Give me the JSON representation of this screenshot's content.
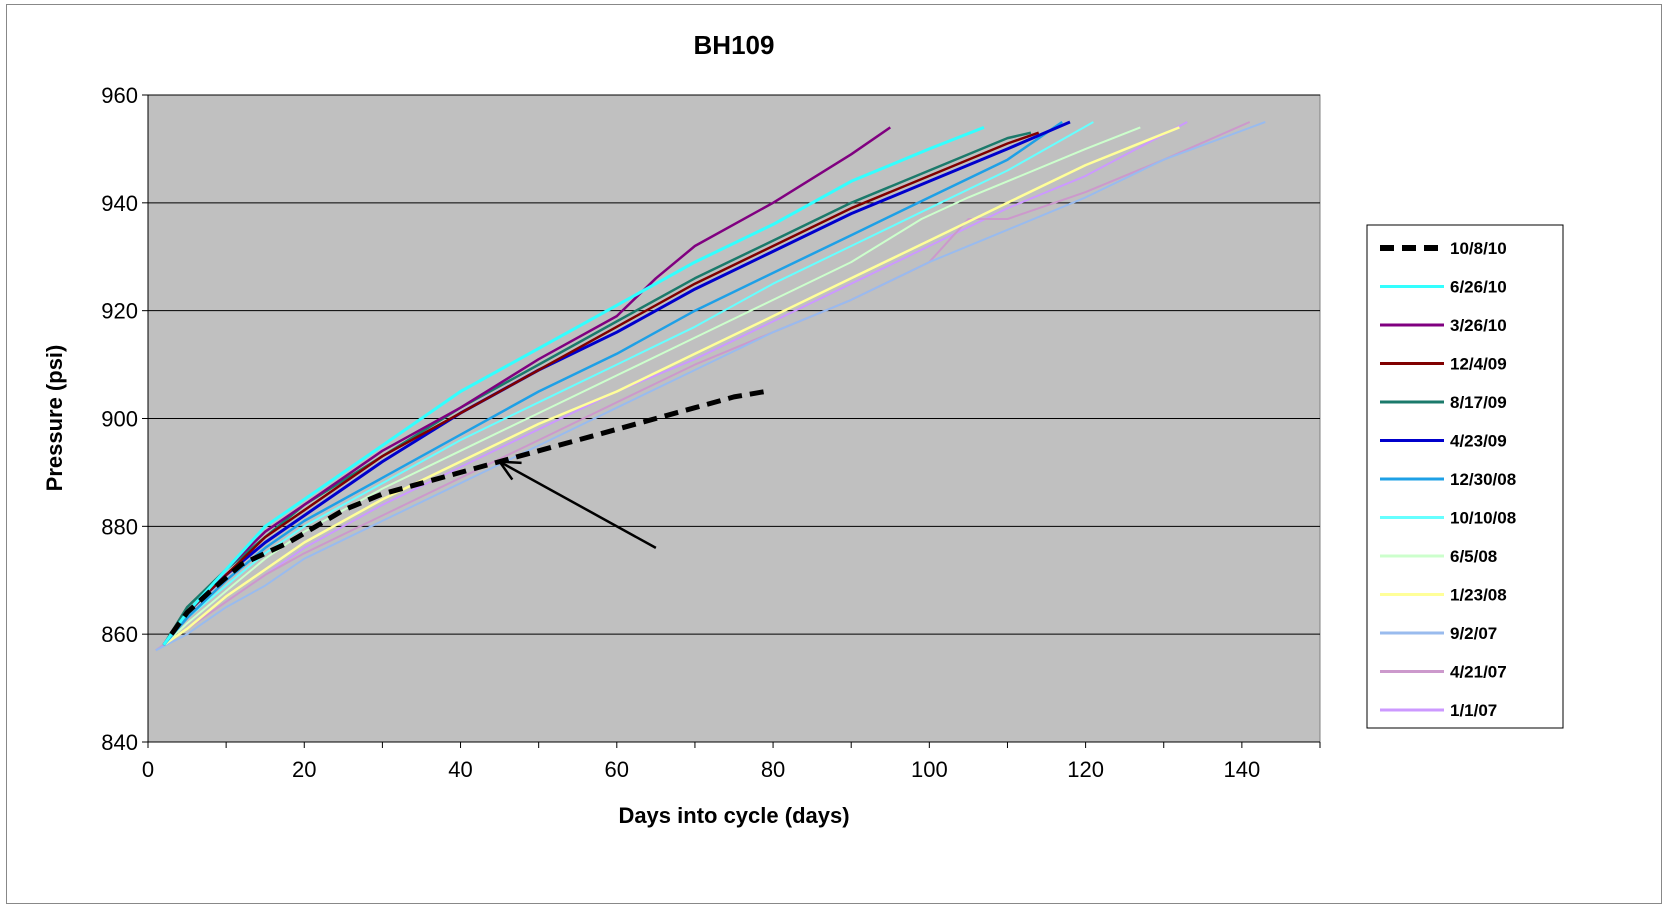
{
  "chart_data": {
    "type": "line",
    "title": "BH109",
    "xlabel": "Days into cycle (days)",
    "ylabel": "Pressure (psi)",
    "xlim": [
      0,
      150
    ],
    "ylim": [
      840,
      960
    ],
    "x_ticks": [
      0,
      20,
      40,
      60,
      80,
      100,
      120,
      140
    ],
    "y_ticks": [
      840,
      860,
      880,
      900,
      920,
      940,
      960
    ],
    "grid": "horizontal",
    "plot_background": "#c0c0c0",
    "legend_position": "right",
    "annotation": {
      "type": "arrow",
      "from": [
        65,
        876
      ],
      "to": [
        45,
        892
      ]
    },
    "series": [
      {
        "name": "10/8/10",
        "color": "#000000",
        "dashed": true,
        "width": 5,
        "points": [
          [
            3,
            860
          ],
          [
            5,
            864
          ],
          [
            8,
            868
          ],
          [
            12,
            873
          ],
          [
            18,
            877
          ],
          [
            25,
            883
          ],
          [
            30,
            886
          ],
          [
            35,
            888
          ],
          [
            40,
            890
          ],
          [
            45,
            892
          ],
          [
            50,
            894
          ],
          [
            55,
            896
          ],
          [
            60,
            898
          ],
          [
            65,
            900
          ],
          [
            70,
            902
          ],
          [
            75,
            904
          ],
          [
            79,
            905
          ]
        ]
      },
      {
        "name": "6/26/10",
        "color": "#33ffff",
        "width": 3,
        "points": [
          [
            2,
            858
          ],
          [
            5,
            864
          ],
          [
            10,
            872
          ],
          [
            15,
            880
          ],
          [
            20,
            885
          ],
          [
            30,
            895
          ],
          [
            40,
            905
          ],
          [
            50,
            913
          ],
          [
            60,
            921
          ],
          [
            70,
            929
          ],
          [
            80,
            936
          ],
          [
            90,
            944
          ],
          [
            100,
            950
          ],
          [
            107,
            954
          ]
        ]
      },
      {
        "name": "3/26/10",
        "color": "#800080",
        "width": 2.5,
        "points": [
          [
            2,
            858
          ],
          [
            5,
            864
          ],
          [
            10,
            872
          ],
          [
            15,
            879
          ],
          [
            20,
            884
          ],
          [
            30,
            894
          ],
          [
            40,
            902
          ],
          [
            50,
            911
          ],
          [
            60,
            919
          ],
          [
            65,
            926
          ],
          [
            70,
            932
          ],
          [
            80,
            940
          ],
          [
            90,
            949
          ],
          [
            95,
            954
          ]
        ]
      },
      {
        "name": "12/4/09",
        "color": "#800000",
        "width": 2.5,
        "points": [
          [
            2,
            858
          ],
          [
            5,
            864
          ],
          [
            10,
            871
          ],
          [
            15,
            878
          ],
          [
            20,
            883
          ],
          [
            30,
            893
          ],
          [
            40,
            901
          ],
          [
            50,
            909
          ],
          [
            60,
            917
          ],
          [
            70,
            925
          ],
          [
            80,
            932
          ],
          [
            90,
            939
          ],
          [
            100,
            945
          ],
          [
            110,
            951
          ],
          [
            114,
            953
          ]
        ]
      },
      {
        "name": "8/17/09",
        "color": "#1b7a6b",
        "width": 2.5,
        "points": [
          [
            2,
            858
          ],
          [
            5,
            865
          ],
          [
            10,
            872
          ],
          [
            15,
            878
          ],
          [
            20,
            884
          ],
          [
            30,
            893
          ],
          [
            40,
            902
          ],
          [
            50,
            910
          ],
          [
            60,
            918
          ],
          [
            70,
            926
          ],
          [
            80,
            933
          ],
          [
            90,
            940
          ],
          [
            100,
            946
          ],
          [
            110,
            952
          ],
          [
            113,
            953
          ]
        ]
      },
      {
        "name": "4/23/09",
        "color": "#0000cc",
        "width": 3,
        "points": [
          [
            2,
            858
          ],
          [
            5,
            864
          ],
          [
            10,
            871
          ],
          [
            15,
            877
          ],
          [
            20,
            882
          ],
          [
            30,
            892
          ],
          [
            40,
            901
          ],
          [
            50,
            909
          ],
          [
            60,
            916
          ],
          [
            70,
            924
          ],
          [
            80,
            931
          ],
          [
            90,
            938
          ],
          [
            100,
            944
          ],
          [
            110,
            950
          ],
          [
            118,
            955
          ]
        ]
      },
      {
        "name": "12/30/08",
        "color": "#1ea0e6",
        "width": 2.5,
        "points": [
          [
            2,
            858
          ],
          [
            5,
            863
          ],
          [
            10,
            870
          ],
          [
            15,
            876
          ],
          [
            20,
            881
          ],
          [
            30,
            889
          ],
          [
            40,
            897
          ],
          [
            50,
            905
          ],
          [
            60,
            912
          ],
          [
            70,
            920
          ],
          [
            80,
            927
          ],
          [
            90,
            934
          ],
          [
            100,
            941
          ],
          [
            110,
            948
          ],
          [
            117,
            955
          ]
        ]
      },
      {
        "name": "10/10/08",
        "color": "#66ffff",
        "width": 2,
        "points": [
          [
            2,
            858
          ],
          [
            5,
            863
          ],
          [
            10,
            869
          ],
          [
            15,
            875
          ],
          [
            20,
            880
          ],
          [
            30,
            888
          ],
          [
            40,
            896
          ],
          [
            50,
            903
          ],
          [
            60,
            910
          ],
          [
            70,
            917
          ],
          [
            80,
            925
          ],
          [
            90,
            932
          ],
          [
            100,
            939
          ],
          [
            110,
            946
          ],
          [
            121,
            955
          ]
        ]
      },
      {
        "name": "6/5/08",
        "color": "#ccffcc",
        "width": 2,
        "points": [
          [
            2,
            858
          ],
          [
            5,
            862
          ],
          [
            10,
            868
          ],
          [
            15,
            874
          ],
          [
            20,
            879
          ],
          [
            30,
            887
          ],
          [
            40,
            894
          ],
          [
            50,
            901
          ],
          [
            60,
            908
          ],
          [
            70,
            915
          ],
          [
            80,
            922
          ],
          [
            90,
            929
          ],
          [
            99,
            937
          ],
          [
            105,
            941
          ],
          [
            110,
            944
          ],
          [
            120,
            950
          ],
          [
            127,
            954
          ]
        ]
      },
      {
        "name": "1/23/08",
        "color": "#ffff99",
        "width": 2.5,
        "points": [
          [
            2,
            858
          ],
          [
            5,
            861
          ],
          [
            10,
            867
          ],
          [
            15,
            872
          ],
          [
            20,
            877
          ],
          [
            30,
            885
          ],
          [
            40,
            892
          ],
          [
            50,
            899
          ],
          [
            60,
            905
          ],
          [
            70,
            912
          ],
          [
            80,
            919
          ],
          [
            90,
            926
          ],
          [
            100,
            933
          ],
          [
            110,
            940
          ],
          [
            120,
            947
          ],
          [
            132,
            954
          ]
        ]
      },
      {
        "name": "9/2/07",
        "color": "#99bbee",
        "width": 2,
        "points": [
          [
            1,
            857
          ],
          [
            5,
            860
          ],
          [
            10,
            865
          ],
          [
            15,
            869
          ],
          [
            20,
            874
          ],
          [
            30,
            881
          ],
          [
            40,
            888
          ],
          [
            50,
            895
          ],
          [
            60,
            902
          ],
          [
            70,
            909
          ],
          [
            80,
            916
          ],
          [
            90,
            922
          ],
          [
            100,
            929
          ],
          [
            110,
            935
          ],
          [
            120,
            941
          ],
          [
            130,
            948
          ],
          [
            143,
            955
          ]
        ]
      },
      {
        "name": "4/21/07",
        "color": "#cc99cc",
        "width": 2,
        "points": [
          [
            1,
            857
          ],
          [
            5,
            861
          ],
          [
            10,
            866
          ],
          [
            15,
            871
          ],
          [
            20,
            875
          ],
          [
            30,
            882
          ],
          [
            40,
            889
          ],
          [
            50,
            896
          ],
          [
            60,
            903
          ],
          [
            70,
            910
          ],
          [
            80,
            916
          ],
          [
            90,
            922
          ],
          [
            100,
            929
          ],
          [
            105,
            937
          ],
          [
            110,
            937
          ],
          [
            120,
            942
          ],
          [
            130,
            948
          ],
          [
            141,
            955
          ]
        ]
      },
      {
        "name": "1/1/07",
        "color": "#cc99ff",
        "width": 2,
        "points": [
          [
            1,
            857
          ],
          [
            5,
            861
          ],
          [
            10,
            866
          ],
          [
            15,
            871
          ],
          [
            20,
            876
          ],
          [
            30,
            884
          ],
          [
            40,
            891
          ],
          [
            50,
            898
          ],
          [
            60,
            905
          ],
          [
            70,
            911
          ],
          [
            80,
            918
          ],
          [
            90,
            925
          ],
          [
            100,
            932
          ],
          [
            110,
            939
          ],
          [
            120,
            945
          ],
          [
            133,
            955
          ]
        ]
      }
    ]
  }
}
